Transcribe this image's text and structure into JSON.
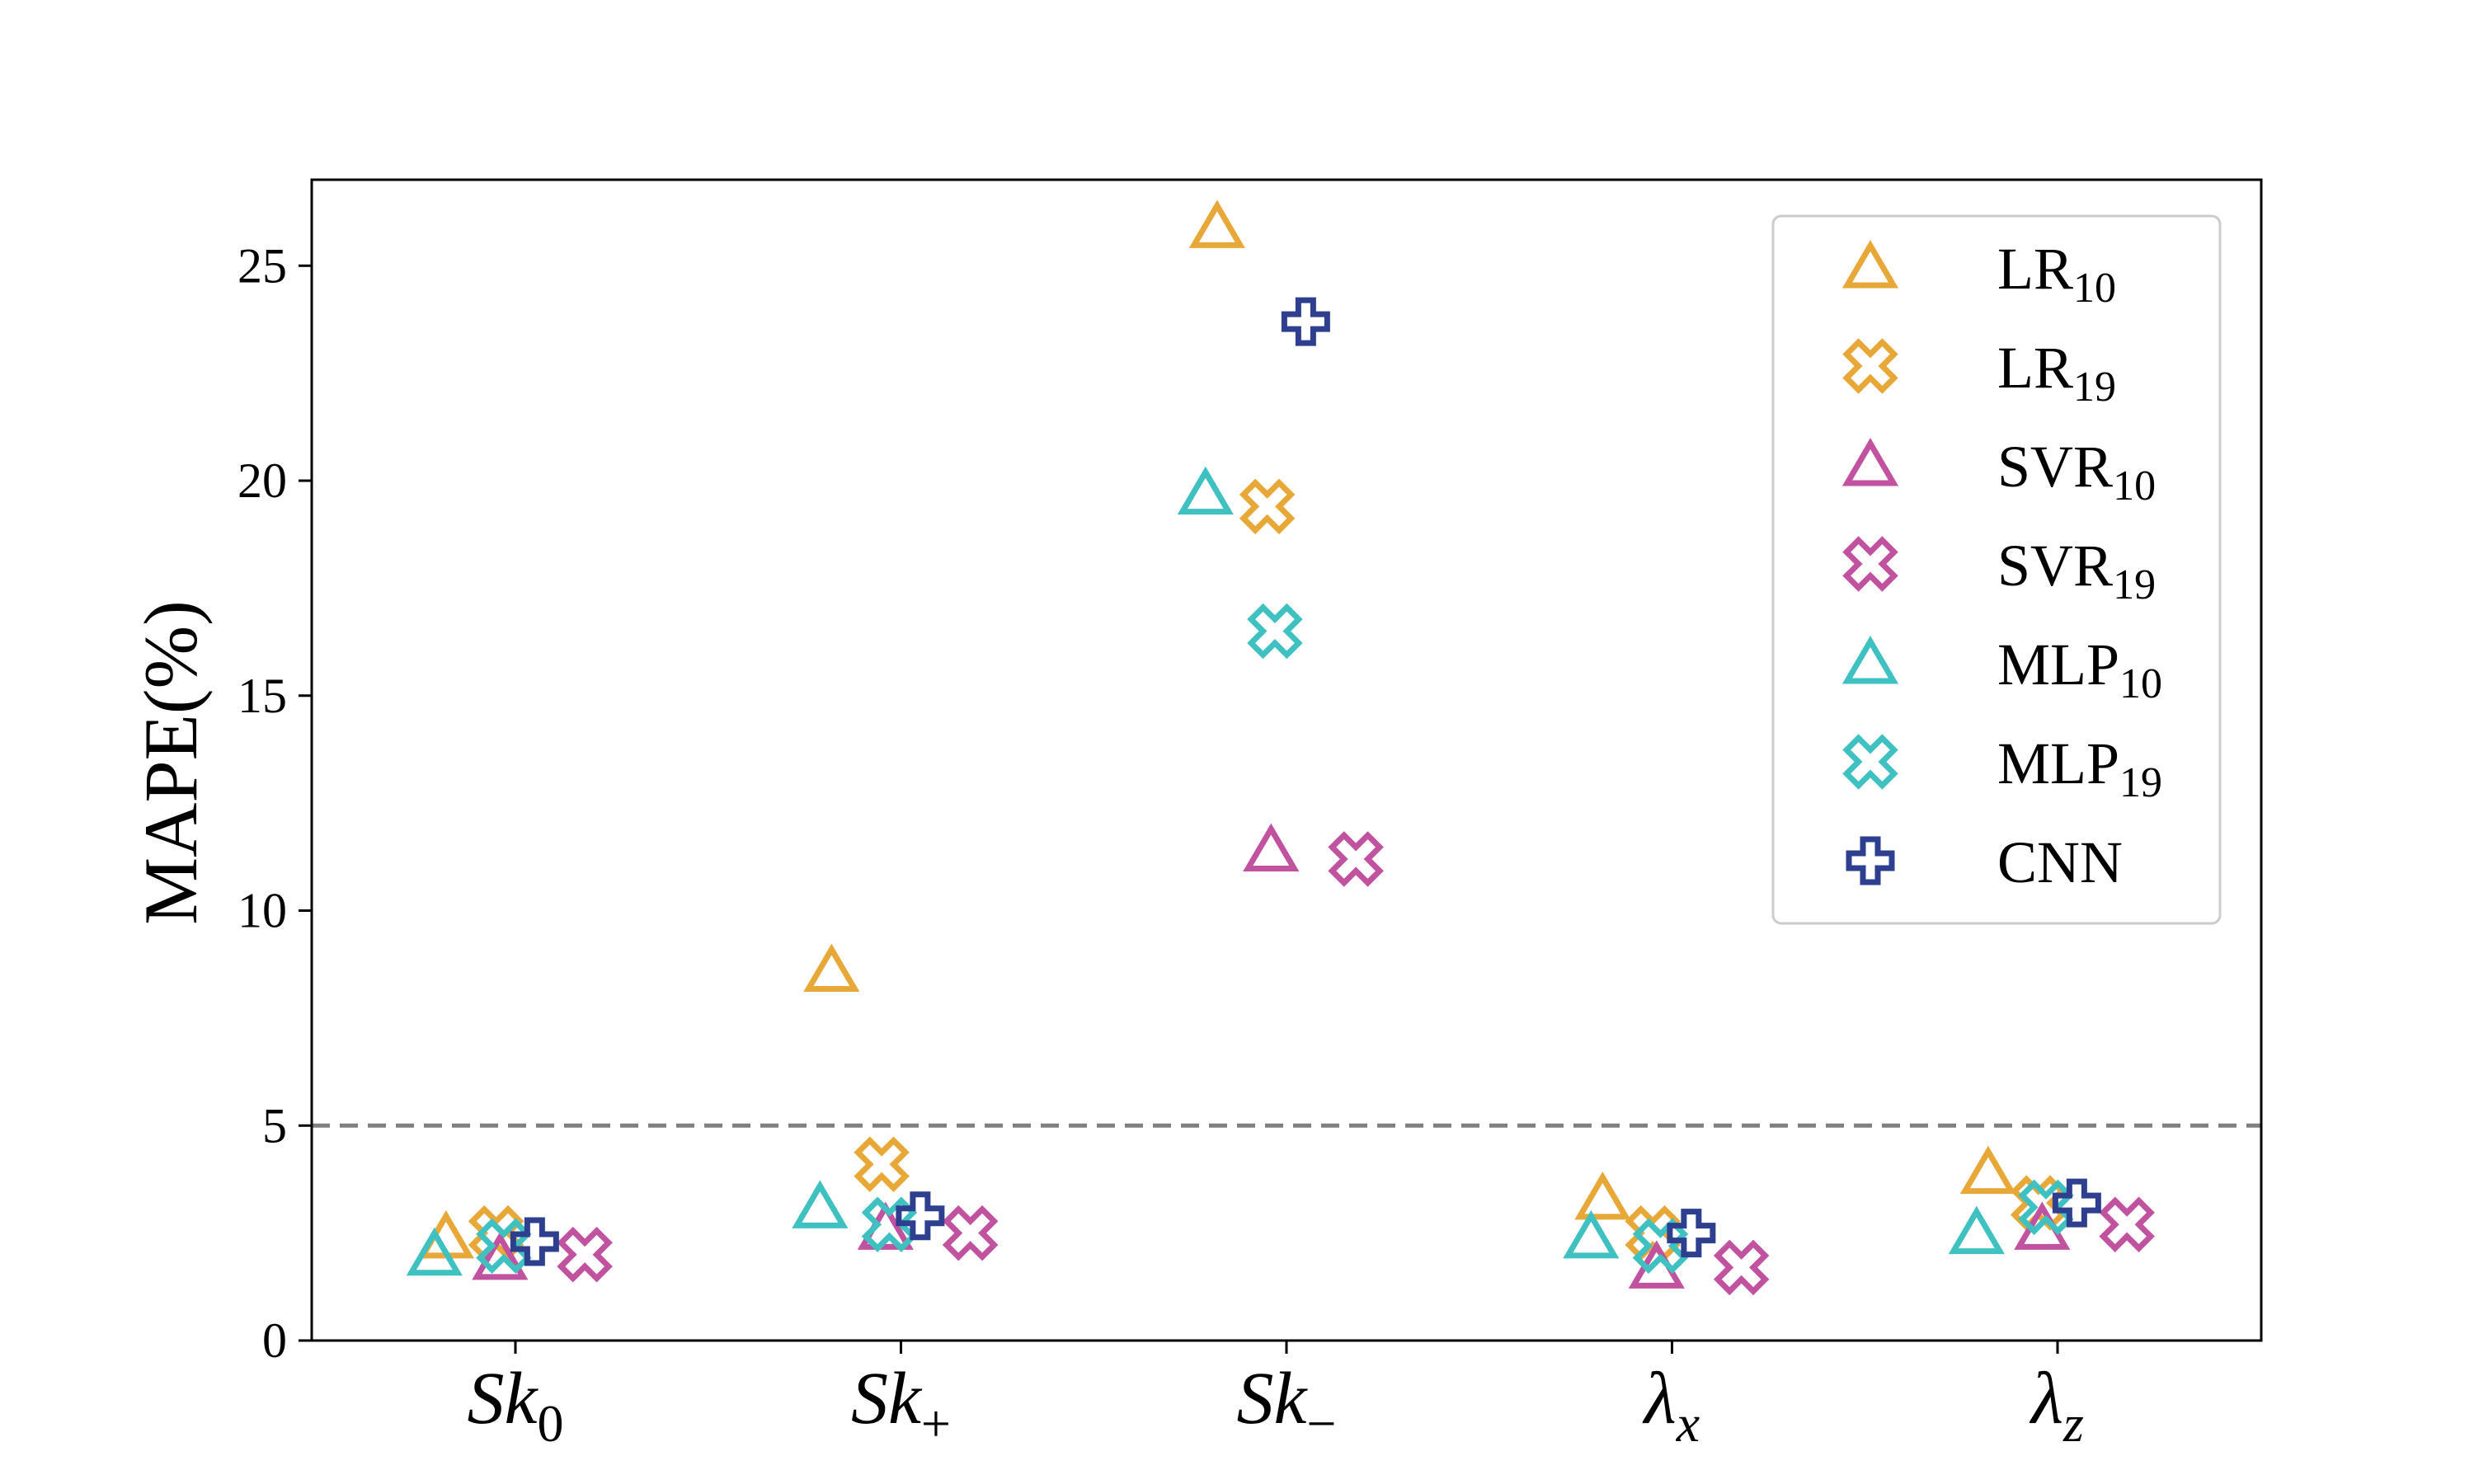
{
  "chart_data": {
    "type": "scatter",
    "ylabel": "MAPE(%)",
    "ylim": [
      0,
      27
    ],
    "yticks": [
      0,
      5,
      10,
      15,
      20,
      25
    ],
    "reference_line": {
      "y": 5,
      "style": "dashed",
      "color": "#808080"
    },
    "categories": [
      {
        "base": "Sk",
        "sub": "0"
      },
      {
        "base": "Sk",
        "sub": "+"
      },
      {
        "base": "Sk",
        "sub": "−"
      },
      {
        "base": "λ",
        "sub": "x"
      },
      {
        "base": "λ",
        "sub": "z"
      }
    ],
    "legend_position": "top-right",
    "series": [
      {
        "name": "LR",
        "name_sub": "10",
        "marker": "triangle",
        "color": "#E8A838",
        "offset": -0.18,
        "values": [
          2.4,
          8.6,
          25.9,
          3.3,
          3.9
        ]
      },
      {
        "name": "LR",
        "name_sub": "19",
        "marker": "x",
        "color": "#E8A838",
        "offset": -0.05,
        "values": [
          2.5,
          4.1,
          19.4,
          2.5,
          3.2
        ]
      },
      {
        "name": "SVR",
        "name_sub": "10",
        "marker": "triangle",
        "color": "#C0529F",
        "offset": -0.04,
        "values": [
          1.9,
          2.6,
          11.4,
          1.7,
          2.6
        ]
      },
      {
        "name": "SVR",
        "name_sub": "19",
        "marker": "x",
        "color": "#C0529F",
        "offset": 0.18,
        "values": [
          2.0,
          2.5,
          11.2,
          1.7,
          2.7
        ]
      },
      {
        "name": "MLP",
        "name_sub": "10",
        "marker": "triangle",
        "color": "#3FC1C1",
        "offset": -0.21,
        "values": [
          2.0,
          3.1,
          19.7,
          2.4,
          2.5
        ]
      },
      {
        "name": "MLP",
        "name_sub": "19",
        "marker": "x",
        "color": "#3FC1C1",
        "offset": -0.03,
        "values": [
          2.2,
          2.7,
          16.5,
          2.2,
          3.1
        ]
      },
      {
        "name": "CNN",
        "name_sub": "",
        "marker": "plus",
        "color": "#2E3F8F",
        "offset": 0.05,
        "values": [
          2.3,
          2.9,
          23.7,
          2.5,
          3.2
        ]
      }
    ]
  }
}
